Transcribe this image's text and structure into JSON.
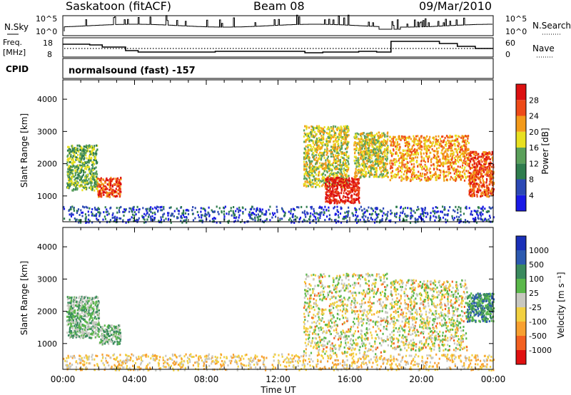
{
  "header": {
    "station": "Saskatoon (fitACF)",
    "beam": "Beam 08",
    "date": "09/Mar/2010"
  },
  "noise_panel": {
    "left_label": "N.Sky",
    "right_label": "N.Search",
    "tick_top": "10^5",
    "tick_bottom": "10^0"
  },
  "freq_panel": {
    "left_label_1": "Freq.",
    "left_label_2": "[MHz]",
    "left_ticks": [
      "18",
      "8"
    ],
    "right_label": "Nave",
    "right_ticks": [
      "60",
      "0"
    ]
  },
  "cpid_panel": {
    "label": "CPID",
    "text": "normalsound (fast) -157"
  },
  "colors": {
    "power": [
      "#1a1ae6",
      "#2c49b5",
      "#2f7d4e",
      "#5aa05a",
      "#e8e020",
      "#f39a1a",
      "#ee4a18",
      "#dc1010"
    ],
    "velocity": [
      "#e01010",
      "#f36020",
      "#f8a030",
      "#f2d040",
      "#c8c8c0",
      "#5ab84a",
      "#3a8a5e",
      "#2c5ab0",
      "#1a30b8"
    ]
  },
  "chart_data": [
    {
      "type": "heatmap",
      "name": "Power",
      "ylabel": "Slant Range [km]",
      "xlabel": "Time UT",
      "xticks": [
        "00:00",
        "04:00",
        "08:00",
        "12:00",
        "16:00",
        "20:00",
        "00:00"
      ],
      "yticks": [
        "1000",
        "2000",
        "3000",
        "4000"
      ],
      "ylim": [
        200,
        4600
      ],
      "colorbar": {
        "label": "Power [dB]",
        "ticks": [
          "4",
          "8",
          "12",
          "16",
          "20",
          "24",
          "28"
        ],
        "range": [
          0,
          30
        ]
      },
      "echo_regions": [
        {
          "t0": 0.2,
          "t1": 1.9,
          "r0": 1200,
          "r1": 2600,
          "level": 3
        },
        {
          "t0": 1.9,
          "t1": 3.2,
          "r0": 1000,
          "r1": 1600,
          "level": 6
        },
        {
          "t0": 13.4,
          "t1": 15.9,
          "r0": 1300,
          "r1": 3200,
          "level": 4
        },
        {
          "t0": 14.6,
          "t1": 16.5,
          "r0": 800,
          "r1": 1600,
          "level": 7
        },
        {
          "t0": 16.2,
          "t1": 18.1,
          "r0": 1600,
          "r1": 3000,
          "level": 4
        },
        {
          "t0": 18.2,
          "t1": 22.6,
          "r0": 1500,
          "r1": 2900,
          "level": 5
        },
        {
          "t0": 22.6,
          "t1": 24.0,
          "r0": 1000,
          "r1": 2400,
          "level": 6
        },
        {
          "t0": 0.0,
          "t1": 24.0,
          "r0": 200,
          "r1": 700,
          "level": 1
        }
      ]
    },
    {
      "type": "heatmap",
      "name": "Velocity",
      "ylabel": "Slant Range [km]",
      "xlabel": "Time UT",
      "xticks": [
        "00:00",
        "04:00",
        "08:00",
        "12:00",
        "16:00",
        "20:00",
        "00:00"
      ],
      "yticks": [
        "1000",
        "2000",
        "3000",
        "4000"
      ],
      "ylim": [
        200,
        4600
      ],
      "colorbar": {
        "label": "Velocity [m s⁻¹]",
        "ticks": [
          "1000",
          "500",
          "100",
          "25",
          "-25",
          "-100",
          "-500",
          "-1000"
        ],
        "range": [
          -1200,
          1200
        ]
      },
      "echo_regions": [
        {
          "t0": 0.2,
          "t1": 2.0,
          "r0": 1200,
          "r1": 2500,
          "level": 5
        },
        {
          "t0": 2.0,
          "t1": 3.2,
          "r0": 1000,
          "r1": 1600,
          "level": 5
        },
        {
          "t0": 13.4,
          "t1": 18.1,
          "r0": 700,
          "r1": 3200,
          "level": 4
        },
        {
          "t0": 18.2,
          "t1": 22.5,
          "r0": 800,
          "r1": 3000,
          "level": 4
        },
        {
          "t0": 22.5,
          "t1": 24.0,
          "r0": 1700,
          "r1": 2600,
          "level": 6
        },
        {
          "t0": 0.0,
          "t1": 24.0,
          "r0": 200,
          "r1": 700,
          "level": 3
        }
      ]
    }
  ]
}
